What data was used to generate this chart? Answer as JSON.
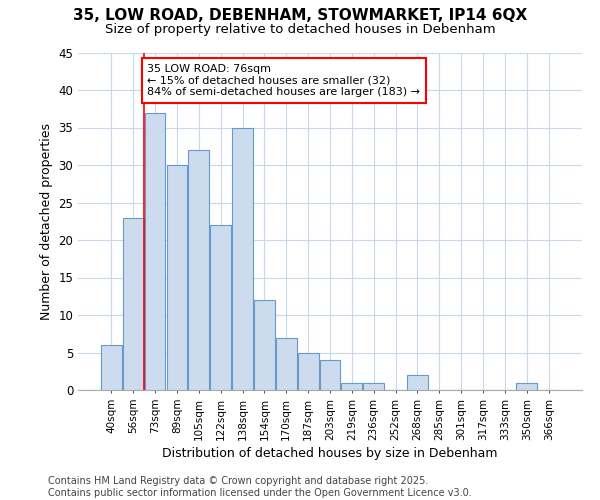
{
  "title_line1": "35, LOW ROAD, DEBENHAM, STOWMARKET, IP14 6QX",
  "title_line2": "Size of property relative to detached houses in Debenham",
  "xlabel": "Distribution of detached houses by size in Debenham",
  "ylabel": "Number of detached properties",
  "bar_color": "#ccdcee",
  "bar_edge_color": "#6699cc",
  "categories": [
    "40sqm",
    "56sqm",
    "73sqm",
    "89sqm",
    "105sqm",
    "122sqm",
    "138sqm",
    "154sqm",
    "170sqm",
    "187sqm",
    "203sqm",
    "219sqm",
    "236sqm",
    "252sqm",
    "268sqm",
    "285sqm",
    "301sqm",
    "317sqm",
    "333sqm",
    "350sqm",
    "366sqm"
  ],
  "values": [
    6,
    23,
    37,
    30,
    32,
    22,
    35,
    12,
    7,
    5,
    4,
    1,
    1,
    0,
    2,
    0,
    0,
    0,
    0,
    1,
    0
  ],
  "ylim": [
    0,
    45
  ],
  "yticks": [
    0,
    5,
    10,
    15,
    20,
    25,
    30,
    35,
    40,
    45
  ],
  "annotation_text": "35 LOW ROAD: 76sqm\n← 15% of detached houses are smaller (32)\n84% of semi-detached houses are larger (183) →",
  "vline_x": 2.0,
  "background_color": "#ffffff",
  "grid_color": "#c8d8e8",
  "footer_line1": "Contains HM Land Registry data © Crown copyright and database right 2025.",
  "footer_line2": "Contains public sector information licensed under the Open Government Licence v3.0."
}
